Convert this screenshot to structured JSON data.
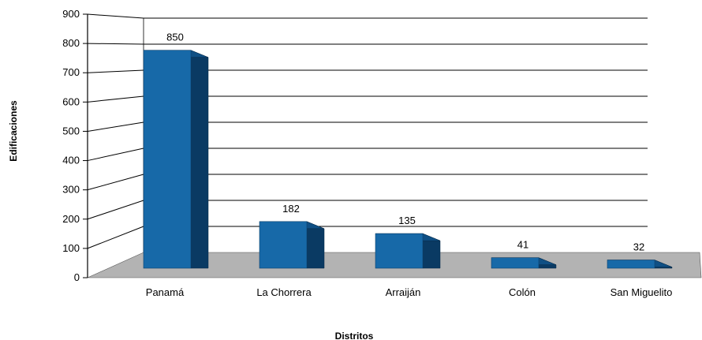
{
  "chart_data": {
    "type": "bar",
    "xlabel": "Distritos",
    "ylabel": "Edificaciones",
    "categories": [
      "Panamá",
      "La Chorrera",
      "Arraiján",
      "Colón",
      "San Miguelito"
    ],
    "values": [
      850,
      182,
      135,
      41,
      32
    ],
    "value_labels": [
      "850",
      "182",
      "135",
      "41",
      "32"
    ],
    "ylim": [
      0,
      900
    ],
    "yticks": [
      "0",
      "100",
      "200",
      "300",
      "400",
      "500",
      "600",
      "700",
      "800",
      "900"
    ],
    "grid": true,
    "three_d": true,
    "colors": {
      "bar_front": "#1769a8",
      "bar_top": "#0f4f84",
      "bar_side": "#0a3a63",
      "floor": "#b3b3b3",
      "grid": "#000000"
    }
  }
}
